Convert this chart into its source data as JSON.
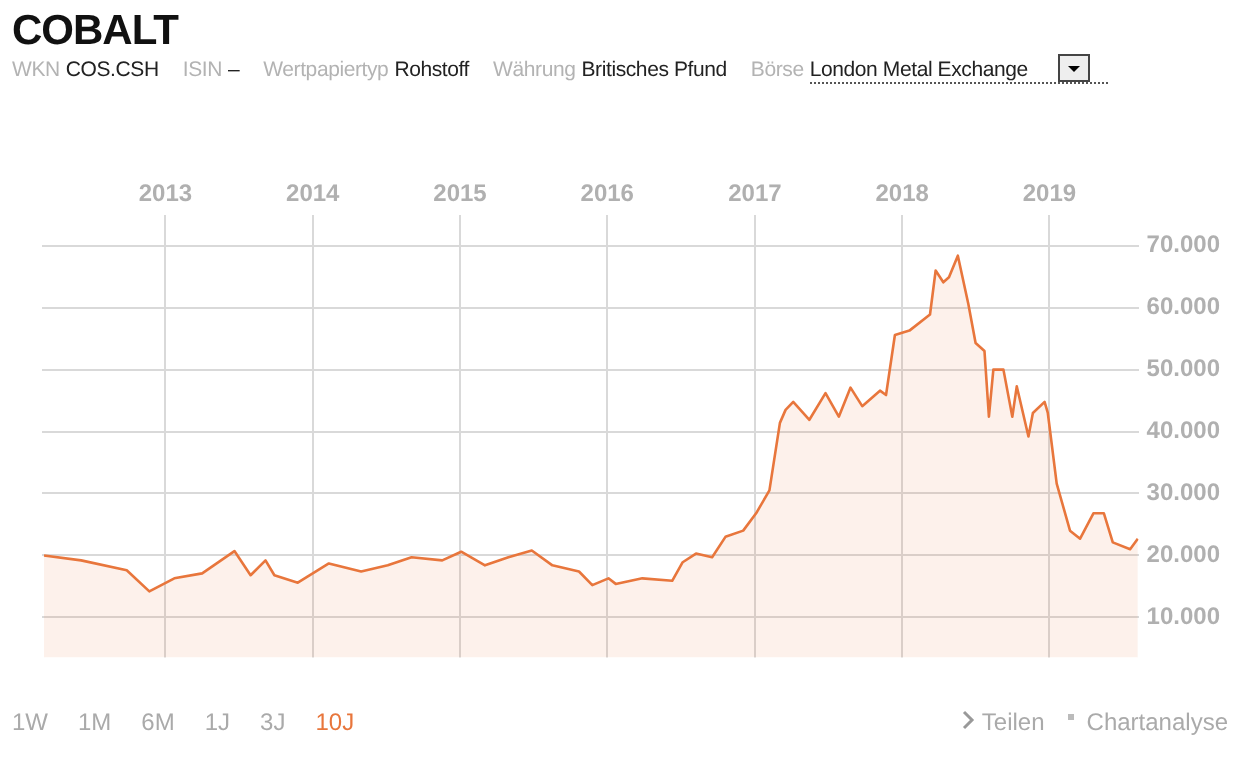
{
  "chart_data": {
    "type": "area",
    "title": "COBALT",
    "annotations": [
      "WKN",
      "COS.CSH",
      "ISIN",
      "–",
      "Wertpapiertyp",
      "Rohstoff",
      "Währung",
      "Britisches Pfund",
      "Börse",
      "London Metal Exchange",
      "1W",
      "1M",
      "6M",
      "1J",
      "3J",
      "10J",
      "Teilen",
      "Chartanalyse"
    ],
    "x": [
      "2012-03-06",
      "2012-06-06",
      "2012-09-27",
      "2012-11-22",
      "2013-01-23",
      "2013-04-02",
      "2013-06-21",
      "2013-07-31",
      "2013-09-06",
      "2013-09-28",
      "2013-11-25",
      "2014-02-10",
      "2014-05-01",
      "2014-07-06",
      "2014-09-03",
      "2014-11-18",
      "2015-01-04",
      "2015-03-04",
      "2015-05-01",
      "2015-06-28",
      "2015-08-18",
      "2015-10-23",
      "2015-11-25",
      "2016-01-04",
      "2016-01-22",
      "2016-03-28",
      "2016-06-10",
      "2016-07-06",
      "2016-08-08",
      "2016-09-17",
      "2016-10-20",
      "2016-12-03",
      "2017-01-04",
      "2017-02-06",
      "2017-03-04",
      "2017-03-18",
      "2017-04-06",
      "2017-05-16",
      "2017-06-25",
      "2017-07-28",
      "2017-08-26",
      "2017-09-24",
      "2017-11-07",
      "2017-11-22",
      "2017-12-14",
      "2018-01-19",
      "2018-03-11",
      "2018-03-25",
      "2018-04-13",
      "2018-04-27",
      "2018-05-19",
      "2018-06-14",
      "2018-07-02",
      "2018-07-24",
      "2018-08-04",
      "2018-08-15",
      "2018-09-09",
      "2018-10-01",
      "2018-10-12",
      "2018-11-10",
      "2018-11-21",
      "2018-12-20",
      "2018-12-28",
      "2019-01-19",
      "2019-02-21",
      "2019-03-18",
      "2019-04-20",
      "2019-05-16",
      "2019-06-07",
      "2019-07-20",
      "2019-08-08"
    ],
    "series": [
      {
        "color": "#e8763c",
        "values": [
          20000,
          19200,
          17600,
          14200,
          16300,
          17100,
          20700,
          16800,
          19200,
          16800,
          15600,
          18700,
          17400,
          18400,
          19700,
          19200,
          20600,
          18400,
          19700,
          20800,
          18400,
          17400,
          15200,
          16300,
          15400,
          16300,
          15900,
          18900,
          20300,
          19700,
          23000,
          24000,
          26800,
          30500,
          41400,
          43500,
          44800,
          41900,
          46200,
          42400,
          47100,
          44100,
          46600,
          45900,
          55600,
          56300,
          58900,
          66000,
          64100,
          64900,
          68400,
          60600,
          54300,
          53000,
          42400,
          50000,
          50000,
          42400,
          47300,
          39200,
          43000,
          44800,
          43000,
          31600,
          24000,
          22700,
          26800,
          26800,
          22100,
          21000,
          22700
        ]
      }
    ],
    "xlim": [
      "2012-03-01",
      "2019-08-10"
    ],
    "xticks": [
      "2013",
      "2014",
      "2015",
      "2016",
      "2017",
      "2018",
      "2019"
    ],
    "ylim": [
      3500,
      75000
    ],
    "yticks": [
      {
        "value": 10000,
        "label": "10.000"
      },
      {
        "value": 20000,
        "label": "20.000"
      },
      {
        "value": 30000,
        "label": "30.000"
      },
      {
        "value": 40000,
        "label": "40.000"
      },
      {
        "value": 50000,
        "label": "50.000"
      },
      {
        "value": 60000,
        "label": "60.000"
      },
      {
        "value": 70000,
        "label": "70.000"
      }
    ],
    "grid": true,
    "legend": false,
    "marker": "none",
    "line_style": "solid"
  }
}
